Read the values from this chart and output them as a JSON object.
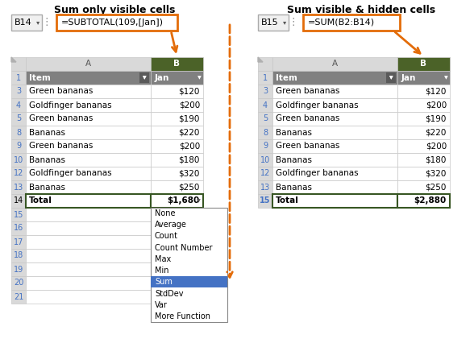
{
  "title_left": "Sum only visible cells",
  "title_right": "Sum visible & hidden cells",
  "formula_left": "=SUBTOTAL(109,[Jan])",
  "formula_right": "=SUM(B2:B14)",
  "cell_ref_left": "B14",
  "cell_ref_right": "B15",
  "header_col_a": "Item",
  "header_col_b": "Jan",
  "rows": [
    {
      "row": 3,
      "item": "Green bananas",
      "value": "$120"
    },
    {
      "row": 4,
      "item": "Goldfinger bananas",
      "value": "$200"
    },
    {
      "row": 5,
      "item": "Green bananas",
      "value": "$190"
    },
    {
      "row": 8,
      "item": "Bananas",
      "value": "$220"
    },
    {
      "row": 9,
      "item": "Green bananas",
      "value": "$200"
    },
    {
      "row": 10,
      "item": "Bananas",
      "value": "$180"
    },
    {
      "row": 12,
      "item": "Goldfinger bananas",
      "value": "$320"
    },
    {
      "row": 13,
      "item": "Bananas",
      "value": "$250"
    }
  ],
  "total_row_left": {
    "row": 14,
    "label": "Total",
    "value": "$1,680"
  },
  "total_row_right": {
    "row": 15,
    "label": "Total",
    "value": "$2,880"
  },
  "dropdown_items": [
    "None",
    "Average",
    "Count",
    "Count Number",
    "Max",
    "Min",
    "Sum",
    "StdDev",
    "Var",
    "More Function"
  ],
  "dropdown_selected": "Sum",
  "empty_rows_left": [
    15,
    16,
    17,
    18,
    19,
    20,
    21
  ],
  "colors": {
    "title": "#000000",
    "header_bg": "#808080",
    "header_text": "#ffffff",
    "row_number_color": "#4472C4",
    "formula_bar_border": "#E36C09",
    "total_border_color": "#375623",
    "dropdown_selected_bg": "#4472C4",
    "grid_color": "#C8C8C8",
    "arrow_color": "#E36C09",
    "b_col_header_bg": "#4B6228",
    "colhdr_bg": "#D9D9D9"
  }
}
